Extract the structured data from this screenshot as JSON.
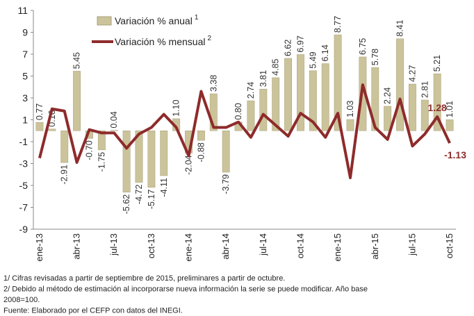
{
  "chart_data": {
    "type": "bar_line",
    "categories": [
      "ene-13",
      null,
      null,
      "abr-13",
      null,
      null,
      "jul-13",
      null,
      null,
      "oct-13",
      null,
      null,
      "ene-14",
      null,
      null,
      "abr-14",
      null,
      null,
      "jul-14",
      null,
      null,
      "oct-14",
      null,
      null,
      "ene-15",
      null,
      null,
      "abr-15",
      null,
      null,
      "jul-15",
      null,
      null,
      "oct-15"
    ],
    "series": [
      {
        "name": "Variación % anual",
        "note_ref": "1",
        "type": "bar",
        "color": "#cbc39a",
        "values": [
          0.77,
          0.16,
          -2.91,
          5.45,
          -0.7,
          -1.75,
          0.04,
          -5.62,
          -4.72,
          -5.17,
          -4.11,
          1.1,
          -2.04,
          -0.88,
          3.38,
          -3.79,
          0.8,
          2.74,
          3.81,
          4.85,
          6.62,
          6.97,
          5.49,
          6.14,
          8.77,
          1.03,
          6.75,
          5.78,
          2.24,
          8.41,
          4.27,
          2.81,
          5.21,
          1.01
        ],
        "value_labels": [
          "0.77",
          "0.16",
          "-2.91",
          "5.45",
          "-0.70",
          "-1.75",
          "0.04",
          "-5.62",
          "-4.72",
          "-5.17",
          "-4.11",
          "1.10",
          "-2.04",
          "-0.88",
          "3.38",
          "-3.79",
          "0.80",
          "2.74",
          "3.81",
          "4.85",
          "6.62",
          "6.97",
          "5.49",
          "6.14",
          "8.77",
          "1.03",
          "6.75",
          "5.78",
          "2.24",
          "8.41",
          "4.27",
          "2.81",
          "5.21",
          "1.01"
        ]
      },
      {
        "name": "Variación % mensual",
        "note_ref": "2",
        "type": "line",
        "color": "#8e2b2b",
        "values": [
          -2.5,
          2.0,
          1.8,
          -2.9,
          0.1,
          -0.2,
          -0.2,
          -1.6,
          -0.3,
          0.3,
          1.5,
          0.3,
          -2.3,
          3.6,
          0.3,
          0.3,
          0.8,
          -0.6,
          1.5,
          0.5,
          -0.5,
          1.6,
          0.8,
          -0.6,
          1.6,
          -4.3,
          4.2,
          0.3,
          -0.8,
          2.9,
          -1.4,
          -0.3,
          1.28,
          -1.13
        ],
        "value_labels": [
          null,
          null,
          null,
          null,
          null,
          null,
          null,
          null,
          null,
          null,
          null,
          null,
          null,
          null,
          null,
          null,
          null,
          null,
          null,
          null,
          null,
          null,
          null,
          null,
          null,
          null,
          null,
          null,
          null,
          null,
          null,
          null,
          "1.28",
          "-1.13"
        ]
      }
    ],
    "ylim": [
      -9,
      11
    ],
    "yticks": [
      -9,
      -7,
      -5,
      -3,
      -1,
      1,
      3,
      5,
      7,
      9,
      11
    ],
    "grid": false,
    "footnotes": [
      "1/ Cifras revisadas a partir de septiembre de 2015, preliminares a partir de octubre.",
      "2/ Debido al método de estimación al incorporarse nueva información la serie se puede modificar. Año base",
      "2008=100.",
      "Fuente: Elaborado por el CEFP con datos del INEGI."
    ]
  }
}
